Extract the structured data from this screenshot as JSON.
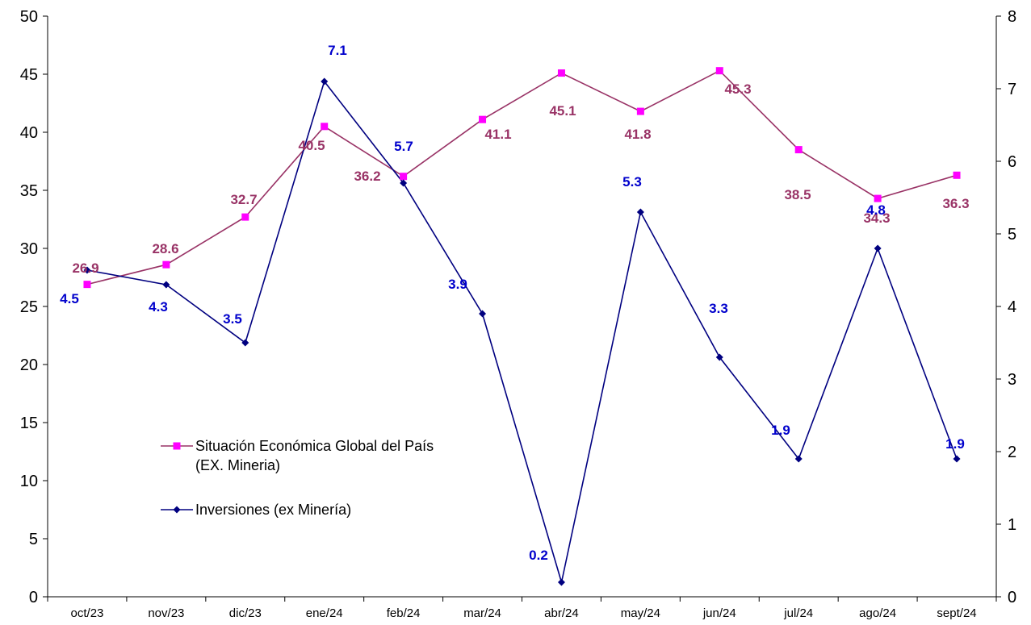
{
  "chart_data": {
    "type": "line",
    "categories": [
      "oct/23",
      "nov/23",
      "dic/23",
      "ene/24",
      "feb/24",
      "mar/24",
      "abr/24",
      "may/24",
      "jun/24",
      "jul/24",
      "ago/24",
      "sept/24"
    ],
    "y_left": {
      "min": 0,
      "max": 50,
      "step": 5,
      "ticks": [
        "0",
        "5",
        "10",
        "15",
        "20",
        "25",
        "30",
        "35",
        "40",
        "45",
        "50"
      ]
    },
    "y_right": {
      "min": 0,
      "max": 8,
      "step": 1,
      "ticks": [
        "0",
        "1",
        "2",
        "3",
        "4",
        "5",
        "6",
        "7",
        "8"
      ]
    },
    "grid": false,
    "legend_position": "left-middle",
    "series": [
      {
        "name": "Situación Económica Global del País (EX. Mineria)",
        "legend_lines": [
          "Situación Económica Global del País",
          "(EX. Mineria)"
        ],
        "axis": "left",
        "marker": "square",
        "line_color": "#993366",
        "marker_color": "#ff00ff",
        "label_color": "#993366",
        "values": [
          26.9,
          28.6,
          32.7,
          40.5,
          36.2,
          41.1,
          45.1,
          41.8,
          45.3,
          38.5,
          34.3,
          36.3
        ],
        "labels": [
          "26.9",
          "28.6",
          "32.7",
          "40.5",
          "36.2",
          "41.1",
          "45.1",
          "41.8",
          "45.3",
          "38.5",
          "34.3",
          "36.3"
        ]
      },
      {
        "name": "Inversiones (ex Minería)",
        "legend_lines": [
          "Inversiones (ex Minería)"
        ],
        "axis": "right",
        "marker": "diamond",
        "line_color": "#000080",
        "marker_color": "#000080",
        "label_color": "#0000cc",
        "values": [
          4.5,
          4.3,
          3.5,
          7.1,
          5.7,
          3.9,
          0.2,
          5.3,
          3.3,
          1.9,
          4.8,
          1.9
        ],
        "labels": [
          "4.5",
          "4.3",
          "3.5",
          "7.1",
          "5.7",
          "3.9",
          "0.2",
          "5.3",
          "3.3",
          "1.9",
          "4.8",
          "1.9"
        ]
      }
    ]
  }
}
